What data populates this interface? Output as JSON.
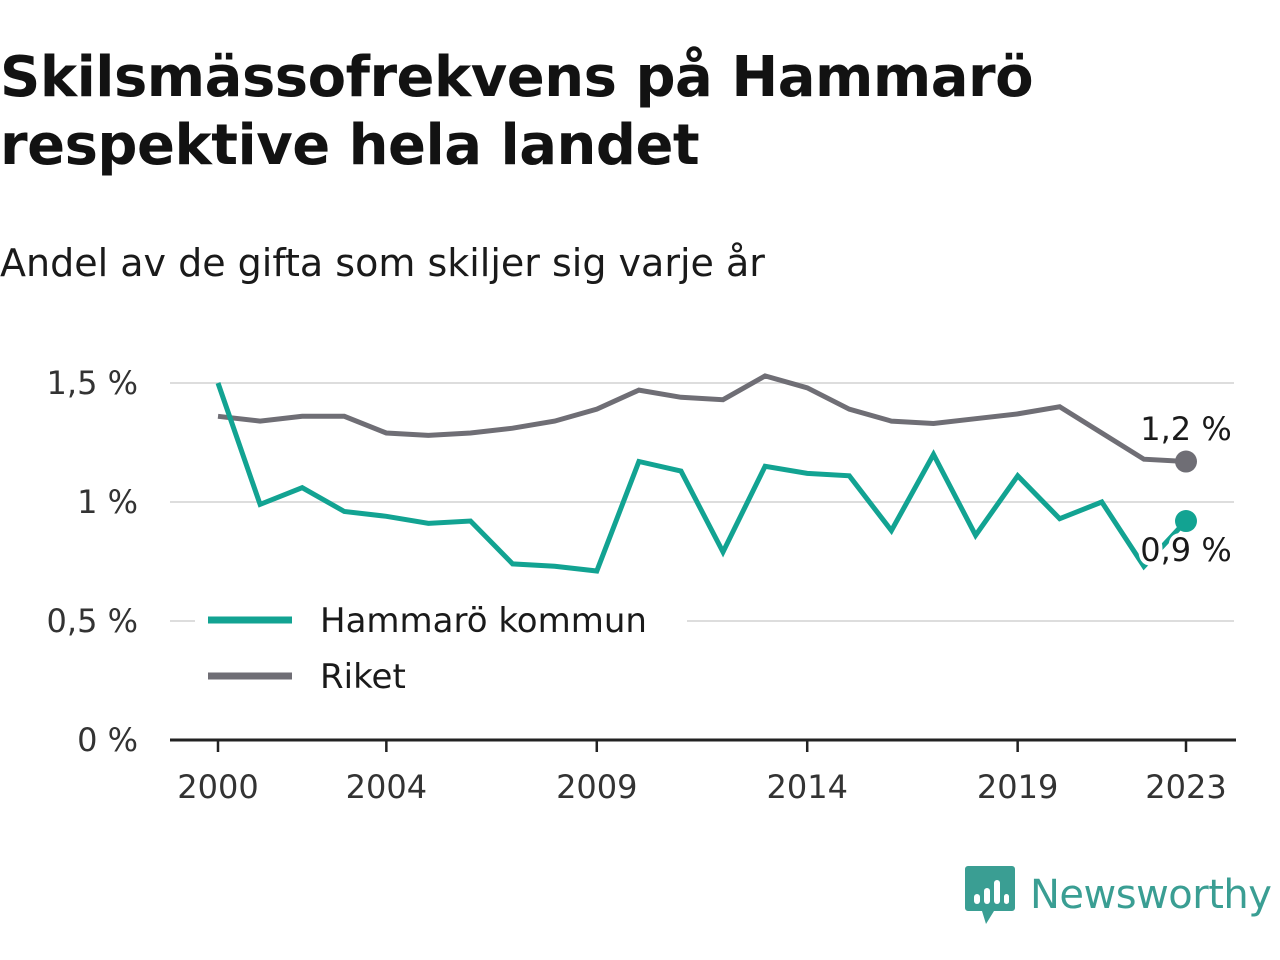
{
  "title": "Skilsmässofrekvens på Hammarö respektive hela landet",
  "subtitle": "Andel av de gifta som skiljer sig varje år",
  "brand": "Newsworthy",
  "colors": {
    "hammaro": "#12a392",
    "riket": "#6f6e75",
    "grid": "#dddddd",
    "axis": "#222222"
  },
  "chart_data": {
    "type": "line",
    "x": [
      2000,
      2001,
      2002,
      2003,
      2004,
      2005,
      2006,
      2007,
      2008,
      2009,
      2010,
      2011,
      2012,
      2013,
      2014,
      2015,
      2016,
      2017,
      2018,
      2019,
      2020,
      2021,
      2022,
      2023
    ],
    "ylim": [
      0,
      1.5
    ],
    "y_ticks": [
      0,
      0.5,
      1,
      1.5
    ],
    "y_tick_labels": [
      "0 %",
      "0,5 %",
      "1 %",
      "1,5 %"
    ],
    "x_ticks": [
      2000,
      2004,
      2009,
      2014,
      2019,
      2023
    ],
    "x_tick_labels": [
      "2000",
      "2004",
      "2009",
      "2014",
      "2019",
      "2023"
    ],
    "grid": true,
    "legend_position": "bottom-left",
    "series": [
      {
        "name": "Hammarö kommun",
        "color": "#12a392",
        "values": [
          1.5,
          0.99,
          1.06,
          0.96,
          0.94,
          0.91,
          0.92,
          0.74,
          0.73,
          0.71,
          1.17,
          1.13,
          0.79,
          1.15,
          1.12,
          1.11,
          0.88,
          1.2,
          0.86,
          1.11,
          0.93,
          1.0,
          0.73,
          0.92
        ],
        "end_label": "0,9 %"
      },
      {
        "name": "Riket",
        "color": "#6f6e75",
        "values": [
          1.36,
          1.34,
          1.36,
          1.36,
          1.29,
          1.28,
          1.29,
          1.31,
          1.34,
          1.39,
          1.47,
          1.44,
          1.43,
          1.53,
          1.48,
          1.39,
          1.34,
          1.33,
          1.35,
          1.37,
          1.4,
          1.29,
          1.18,
          1.17
        ],
        "end_label": "1,2 %"
      }
    ]
  }
}
